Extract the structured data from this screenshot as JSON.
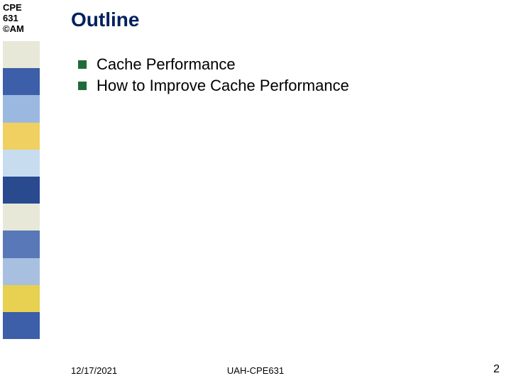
{
  "logo": {
    "line1": "CPE",
    "line2": "631",
    "line3": "©AM"
  },
  "title": "Outline",
  "title_color": "#002060",
  "bullets": [
    {
      "text": "Cache Performance"
    },
    {
      "text": "How to Improve Cache Performance"
    }
  ],
  "bullet_square_color": "#1f6b3a",
  "bullet_text_color": "#000000",
  "sidebar_colors": [
    "#e8e8d8",
    "#3d5ea8",
    "#9bb8e0",
    "#f0d060",
    "#c8dcf0",
    "#2a4a90",
    "#e8e8d8",
    "#5878b8",
    "#a8c0e0",
    "#e8d050",
    "#3d5ea8"
  ],
  "footer": {
    "date": "12/17/2021",
    "center": "UAH-CPE631",
    "page": "2"
  }
}
